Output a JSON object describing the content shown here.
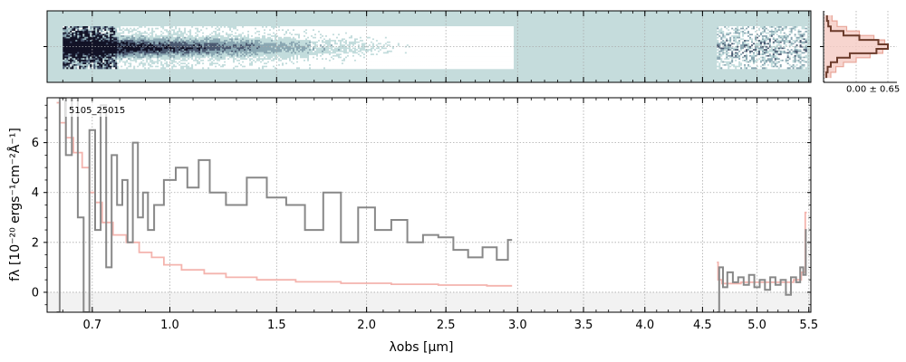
{
  "chart_data": [
    {
      "type": "heatmap",
      "x_range": [
        0.55,
        5.55
      ],
      "y_range": [
        -1,
        1
      ],
      "segments": [
        {
          "x_start": 0.6,
          "x_end": 2.97
        },
        {
          "x_start": 4.63,
          "x_end": 5.48
        }
      ],
      "colormap": [
        "#ffffff",
        "#c2dcdc",
        "#8aa7b2",
        "#4a5870",
        "#121226"
      ],
      "background_color": "#c5dcdc",
      "grid": true
    },
    {
      "type": "line",
      "legend_label": "0.00 ± 0.65",
      "x": [
        -1.3,
        -1.0,
        -0.8,
        -0.6,
        -0.4,
        -0.2,
        0.0,
        0.2,
        0.4,
        0.6,
        0.8,
        1.0,
        1.3
      ],
      "values": [
        0.04,
        0.06,
        0.1,
        0.3,
        0.55,
        0.85,
        1.0,
        0.82,
        0.4,
        0.2,
        0.1,
        0.05,
        0.03
      ],
      "model_values": [
        0.12,
        0.2,
        0.35,
        0.55,
        0.78,
        0.95,
        1.0,
        0.92,
        0.72,
        0.5,
        0.3,
        0.18,
        0.1
      ],
      "colors": {
        "data": "#6b3b2b",
        "model_fill": "#f5cbc3",
        "model_line": "#e8a598"
      }
    },
    {
      "type": "line",
      "title": "5105_25015",
      "xlabel": "λobs [μm]",
      "ylabel": "fλ [10⁻²⁰ ergs⁻¹cm⁻²Å⁻¹]",
      "x_scale": "sqrt",
      "xlim": [
        0.55,
        5.52
      ],
      "ylim": [
        -0.8,
        7.8
      ],
      "x_ticks": [
        0.7,
        1.0,
        1.5,
        2.0,
        2.5,
        3.0,
        3.5,
        4.0,
        4.5,
        5.0,
        5.5
      ],
      "x_tick_labels": [
        "0.7",
        "1.0",
        "1.5",
        "2.0",
        "2.5",
        "3.0",
        "3.5",
        "4.0",
        "4.5",
        "5.0",
        "5.5"
      ],
      "y_ticks": [
        0,
        2,
        4,
        6
      ],
      "y_tick_labels": [
        "0",
        "2",
        "4",
        "6"
      ],
      "grid": true,
      "series": [
        {
          "role": "data",
          "color": "#888888",
          "segments": [
            {
              "x": [
                0.58,
                0.6,
                0.62,
                0.64,
                0.66,
                0.68,
                0.7,
                0.72,
                0.74,
                0.76,
                0.78,
                0.8,
                0.82,
                0.84,
                0.86,
                0.88,
                0.9,
                0.92,
                0.95,
                1.0,
                1.05,
                1.1,
                1.15,
                1.2,
                1.3,
                1.4,
                1.5,
                1.6,
                1.7,
                1.8,
                1.9,
                2.0,
                2.1,
                2.2,
                2.3,
                2.4,
                2.5,
                2.6,
                2.7,
                2.8,
                2.9,
                2.96
              ],
              "y": [
                -0.8,
                7.8,
                5.5,
                7.8,
                3.0,
                -0.8,
                6.5,
                2.5,
                7.5,
                1.0,
                5.5,
                3.5,
                4.5,
                2.0,
                6.0,
                3.0,
                4.0,
                2.5,
                3.5,
                4.5,
                5.0,
                4.2,
                5.3,
                4.0,
                3.5,
                4.6,
                3.8,
                3.5,
                2.5,
                4.0,
                2.0,
                3.4,
                2.5,
                2.9,
                2.0,
                2.3,
                2.2,
                1.7,
                1.4,
                1.8,
                1.3,
                2.1
              ]
            },
            {
              "x": [
                4.63,
                4.67,
                4.7,
                4.75,
                4.8,
                4.85,
                4.9,
                4.95,
                5.0,
                5.05,
                5.1,
                5.15,
                5.2,
                5.25,
                5.3,
                5.35,
                5.4,
                5.43,
                5.46,
                5.48
              ],
              "y": [
                -0.8,
                1.0,
                0.2,
                0.8,
                0.4,
                0.6,
                0.3,
                0.7,
                0.2,
                0.5,
                0.1,
                0.6,
                0.3,
                0.5,
                -0.1,
                0.6,
                0.4,
                1.0,
                0.7,
                2.5
              ]
            }
          ]
        },
        {
          "role": "model",
          "color": "#f4b4ae",
          "segments": [
            {
              "x": [
                0.58,
                0.6,
                0.62,
                0.65,
                0.68,
                0.7,
                0.72,
                0.75,
                0.8,
                0.85,
                0.9,
                0.95,
                1.0,
                1.1,
                1.2,
                1.3,
                1.5,
                1.7,
                2.0,
                2.3,
                2.6,
                2.96
              ],
              "y": [
                7.6,
                6.8,
                6.2,
                5.6,
                5.0,
                4.0,
                3.6,
                2.8,
                2.3,
                2.0,
                1.6,
                1.4,
                1.1,
                0.9,
                0.75,
                0.6,
                0.5,
                0.42,
                0.36,
                0.32,
                0.29,
                0.26
              ]
            },
            {
              "x": [
                4.63,
                4.65,
                4.7,
                4.8,
                4.9,
                5.0,
                5.1,
                5.2,
                5.3,
                5.4,
                5.45,
                5.48
              ],
              "y": [
                1.2,
                0.5,
                0.35,
                0.35,
                0.4,
                0.4,
                0.4,
                0.4,
                0.4,
                0.5,
                0.8,
                3.2
              ]
            }
          ]
        }
      ]
    }
  ]
}
